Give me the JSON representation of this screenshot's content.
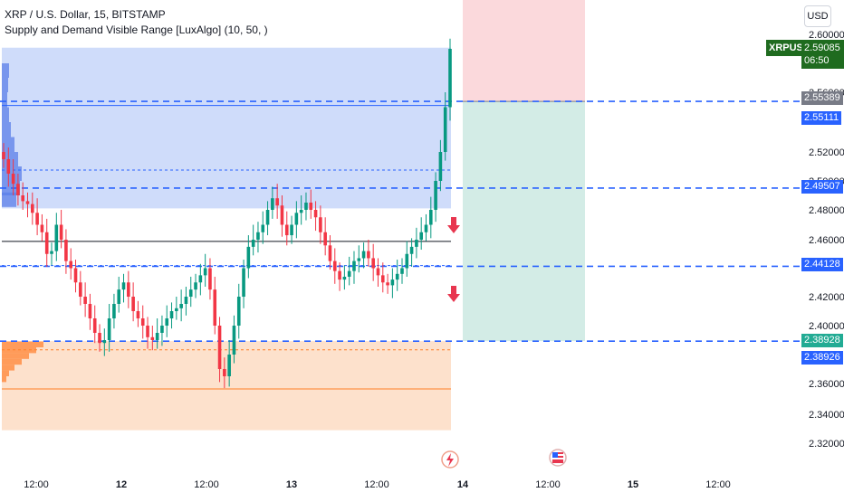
{
  "header": {
    "title": "XRP / U.S. Dollar, 15, BITSTAMP",
    "indicator": "Supply and Demand Visible Range [LuxAlgo] (10, 50, )",
    "currency_button": "USD"
  },
  "last_price": {
    "symbol": "XRPUSD",
    "value": "2.59085",
    "countdown": "06:50"
  },
  "price_labels": [
    {
      "text": "2.55389",
      "value": 2.55389,
      "color": "#787b86"
    },
    {
      "text": "2.55111",
      "value": 2.55111,
      "color": "#2962ff"
    },
    {
      "text": "2.49507",
      "value": 2.49507,
      "color": "#2962ff"
    },
    {
      "text": "2.44128",
      "value": 2.44128,
      "color": "#2962ff"
    },
    {
      "text": "2.38928",
      "value": 2.38928,
      "color": "#22ab94"
    },
    {
      "text": "2.38926",
      "value": 2.38926,
      "color": "#2962ff"
    }
  ],
  "chart_data": {
    "type": "candlestick",
    "y_ticks": [
      "2.60000",
      "2.56000",
      "2.52000",
      "2.50000",
      "2.48000",
      "2.46000",
      "2.42000",
      "2.40000",
      "2.36000",
      "2.34000",
      "2.32000"
    ],
    "y_tick_values": [
      2.6,
      2.56,
      2.52,
      2.5,
      2.48,
      2.46,
      2.42,
      2.4,
      2.36,
      2.34,
      2.32
    ],
    "ylim": [
      2.31,
      2.62
    ],
    "x_ticks": [
      "12:00",
      "12",
      "12:00",
      "13",
      "12:00",
      "14",
      "12:00",
      "15",
      "12:00"
    ],
    "supply_zone": {
      "top": 2.5908,
      "bottom": 2.481,
      "mid": 2.5511,
      "avg": 2.5075,
      "color": "#2962ff"
    },
    "demand_zone": {
      "top": 2.3893,
      "bottom": 2.329,
      "mid": 2.3833,
      "avg": 2.3565,
      "color": "#ff7f26"
    },
    "h_line": 2.4588,
    "dashed_levels": [
      2.55389,
      2.49507,
      2.44128,
      2.38928
    ],
    "position": {
      "entry": 2.5539,
      "stop": 2.65,
      "target": 2.3893
    },
    "close_series": [
      2.515,
      2.505,
      2.498,
      2.49,
      2.486,
      2.484,
      2.478,
      2.47,
      2.465,
      2.45,
      2.452,
      2.47,
      2.46,
      2.445,
      2.44,
      2.43,
      2.42,
      2.415,
      2.405,
      2.395,
      2.388,
      2.39,
      2.405,
      2.415,
      2.425,
      2.43,
      2.42,
      2.41,
      2.405,
      2.4,
      2.392,
      2.39,
      2.395,
      2.4,
      2.405,
      2.41,
      2.412,
      2.415,
      2.42,
      2.425,
      2.43,
      2.435,
      2.44,
      2.425,
      2.4,
      2.37,
      2.365,
      2.38,
      2.4,
      2.42,
      2.44,
      2.455,
      2.46,
      2.465,
      2.47,
      2.48,
      2.488,
      2.483,
      2.47,
      2.463,
      2.47,
      2.478,
      2.48,
      2.485,
      2.48,
      2.475,
      2.465,
      2.456,
      2.445,
      2.438,
      2.432,
      2.434,
      2.438,
      2.445,
      2.447,
      2.452,
      2.447,
      2.44,
      2.435,
      2.43,
      2.428,
      2.432,
      2.436,
      2.44,
      2.45,
      2.455,
      2.46,
      2.465,
      2.47,
      2.48,
      2.5,
      2.52,
      2.55,
      2.59
    ]
  },
  "colors": {
    "up": "#089981",
    "down": "#f23645",
    "supply_fill": "#cfdcfa",
    "demand_fill": "#fde1cc",
    "stop_fill": "#fbd9dc",
    "target_fill": "#d3ece6"
  }
}
